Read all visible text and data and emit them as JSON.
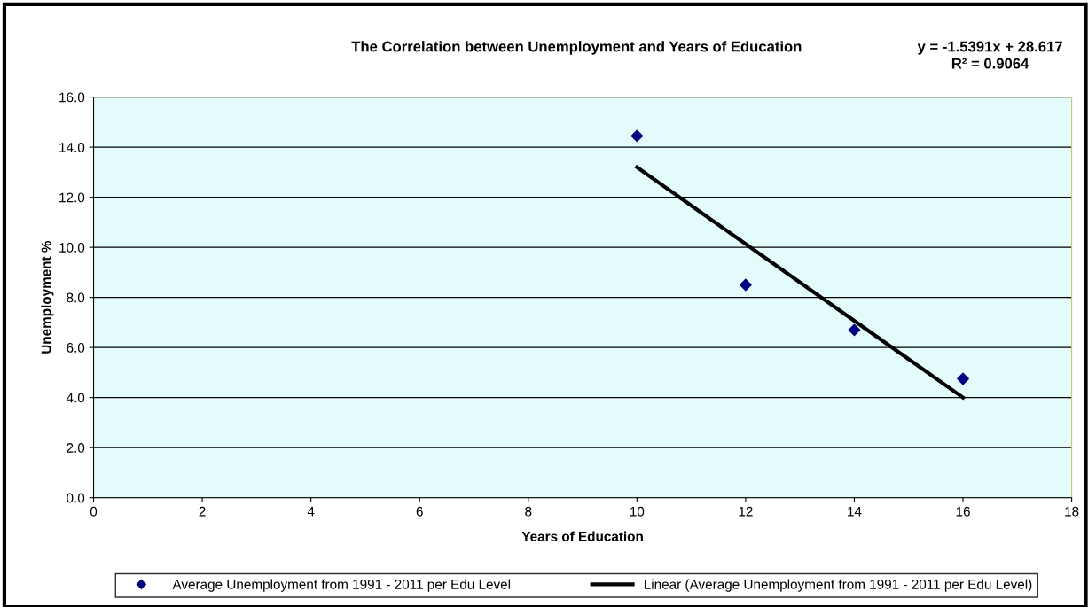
{
  "chart_data": {
    "type": "scatter",
    "title": "The Correlation between Unemployment and Years of Education",
    "xlabel": "Years of Education",
    "ylabel": "Unemployment %",
    "annotations": [
      "y = -1.5391x + 28.617",
      "R² = 0.9064"
    ],
    "series": [
      {
        "name": "Average Unemployment from 1991 - 2011 per Edu Level",
        "color": "#000080",
        "marker": "diamond",
        "x": [
          10,
          12,
          14,
          16
        ],
        "values": [
          14.45,
          8.5,
          6.7,
          4.75
        ]
      },
      {
        "name": "Linear (Average Unemployment from 1991 - 2011 per Edu Level)",
        "type": "line",
        "color": "#000000",
        "marker": "none",
        "line_style": "solid",
        "x": [
          10,
          16
        ],
        "values": [
          13.2,
          4.0
        ]
      }
    ],
    "xlim": [
      0,
      18
    ],
    "xticks": [
      0,
      2,
      4,
      6,
      8,
      10,
      12,
      14,
      16,
      18
    ],
    "ylim": [
      0,
      16
    ],
    "yticks": [
      {
        "value": 0,
        "label": "0.0"
      },
      {
        "value": 2,
        "label": "2.0"
      },
      {
        "value": 4,
        "label": "4.0"
      },
      {
        "value": 6,
        "label": "6.0"
      },
      {
        "value": 8,
        "label": "8.0"
      },
      {
        "value": 10,
        "label": "10.0"
      },
      {
        "value": 12,
        "label": "12.0"
      },
      {
        "value": 14,
        "label": "14.0"
      },
      {
        "value": 16,
        "label": "16.0"
      }
    ],
    "grid": "y",
    "legend": "bottom"
  }
}
